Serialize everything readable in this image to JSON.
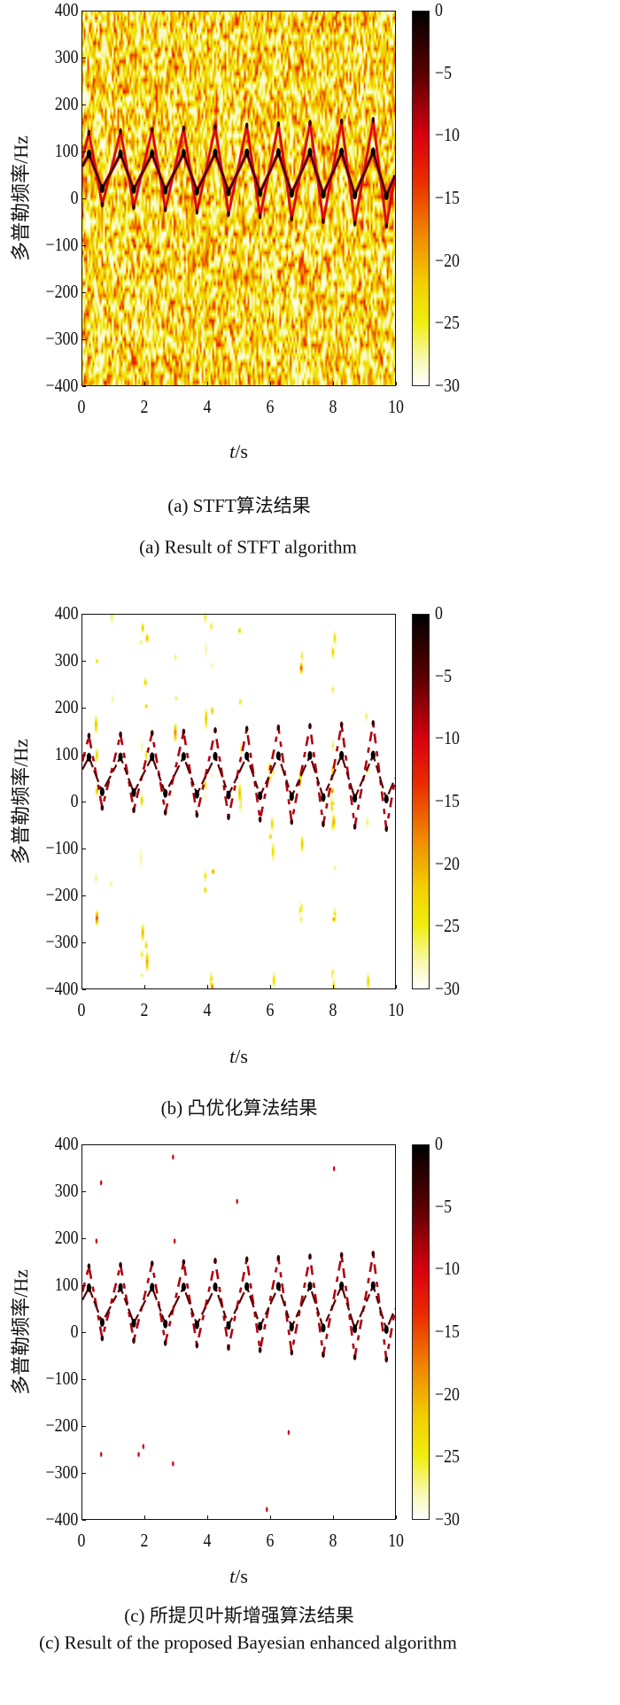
{
  "chart_data": [
    {
      "type": "heatmap",
      "panel": "a",
      "caption_cn": "(a) STFT算法结果",
      "caption_en": "(a) Result of STFT algorithm",
      "xlabel_var": "t",
      "xlabel_unit": "/s",
      "ylabel": "多普勒频率/Hz",
      "xlim": [
        0,
        10
      ],
      "ylim": [
        -400,
        400
      ],
      "x_ticks": [
        "0",
        "2",
        "4",
        "6",
        "8",
        "10"
      ],
      "x_tick_values": [
        0,
        2,
        4,
        6,
        8,
        10
      ],
      "y_ticks": [
        "400",
        "300",
        "200",
        "100",
        "0",
        "−100",
        "−200",
        "−300",
        "−400"
      ],
      "y_tick_values": [
        400,
        300,
        200,
        100,
        0,
        -100,
        -200,
        -300,
        -400
      ],
      "colorbar_ticks": [
        "0",
        "−5",
        "−10",
        "−15",
        "−20",
        "−25",
        "−30"
      ],
      "colorbar_tick_values": [
        0,
        -5,
        -10,
        -15,
        -20,
        -25,
        -30
      ],
      "clim": [
        -30,
        0
      ],
      "colormap": "hot (reversed): white→yellow→red→black",
      "background_noise": "dense",
      "noise_level_db": [
        -30,
        -12
      ],
      "components": [
        {
          "name": "inner",
          "peak_hz": [
            95,
            100
          ],
          "trough_hz": [
            22,
            5
          ],
          "level_db": -3
        },
        {
          "name": "outer",
          "peak_hz": [
            140,
            170
          ],
          "trough_hz": [
            -10,
            -60
          ],
          "level_db": -10
        }
      ],
      "period_s": 1.01,
      "first_peak_s": 0.21,
      "fall_fraction": 0.42
    },
    {
      "type": "heatmap",
      "panel": "b",
      "caption_cn": "(b) 凸优化算法结果",
      "xlabel_var": "t",
      "xlabel_unit": "/s",
      "ylabel": "多普勒频率/Hz",
      "xlim": [
        0,
        10
      ],
      "ylim": [
        -400,
        400
      ],
      "x_ticks": [
        "0",
        "2",
        "4",
        "6",
        "8",
        "10"
      ],
      "x_tick_values": [
        0,
        2,
        4,
        6,
        8,
        10
      ],
      "y_ticks": [
        "400",
        "300",
        "200",
        "100",
        "0",
        "−100",
        "−200",
        "−300",
        "−400"
      ],
      "y_tick_values": [
        400,
        300,
        200,
        100,
        0,
        -100,
        -200,
        -300,
        -400
      ],
      "colorbar_ticks": [
        "0",
        "−5",
        "−10",
        "−15",
        "−20",
        "−25",
        "−30"
      ],
      "colorbar_tick_values": [
        0,
        -5,
        -10,
        -15,
        -20,
        -25,
        -30
      ],
      "clim": [
        -30,
        0
      ],
      "colormap": "hot (reversed): white→yellow→red→black",
      "background_noise": "sparse vertical streaks near t = 1, 2, 3, 4, 5, 6, 8 s",
      "streak_times_s": [
        0.95,
        2.05,
        3.0,
        3.95,
        4.15,
        5.05,
        6.0,
        6.1,
        7.0,
        8.0,
        8.05,
        9.1,
        0.45,
        1.9
      ],
      "components": [
        {
          "name": "inner",
          "peak_hz": [
            95,
            100
          ],
          "trough_hz": [
            22,
            5
          ],
          "level_db": -2
        },
        {
          "name": "outer",
          "peak_hz": [
            140,
            170
          ],
          "trough_hz": [
            -10,
            -60
          ],
          "level_db": -6
        }
      ],
      "period_s": 1.01,
      "first_peak_s": 0.21,
      "fall_fraction": 0.42
    },
    {
      "type": "heatmap",
      "panel": "c",
      "caption_cn": "(c) 所提贝叶斯增强算法结果",
      "caption_en": "(c) Result of the proposed Bayesian enhanced algorithm",
      "xlabel_var": "t",
      "xlabel_unit": "/s",
      "ylabel": "多普勒频率/Hz",
      "xlim": [
        0,
        10
      ],
      "ylim": [
        -400,
        400
      ],
      "x_ticks": [
        "0",
        "2",
        "4",
        "6",
        "8",
        "10"
      ],
      "x_tick_values": [
        0,
        2,
        4,
        6,
        8,
        10
      ],
      "y_ticks": [
        "400",
        "300",
        "200",
        "100",
        "0",
        "−100",
        "−200",
        "−300",
        "−400"
      ],
      "y_tick_values": [
        400,
        300,
        200,
        100,
        0,
        -100,
        -200,
        -300,
        -400
      ],
      "colorbar_ticks": [
        "0",
        "−5",
        "−10",
        "−15",
        "−20",
        "−25",
        "−30"
      ],
      "colorbar_tick_values": [
        0,
        -5,
        -10,
        -15,
        -20,
        -25,
        -30
      ],
      "clim": [
        -30,
        0
      ],
      "colormap": "hot (reversed): white→yellow→red→black",
      "background_noise": "none",
      "outliers": [
        [
          0.6,
          320
        ],
        [
          2.9,
          375
        ],
        [
          4.95,
          280
        ],
        [
          0.45,
          195
        ],
        [
          2.95,
          195
        ],
        [
          8.05,
          350
        ],
        [
          0.6,
          -262
        ],
        [
          1.95,
          -245
        ],
        [
          2.9,
          -282
        ],
        [
          5.9,
          -380
        ],
        [
          6.6,
          -215
        ],
        [
          1.8,
          -262
        ]
      ],
      "components": [
        {
          "name": "inner",
          "peak_hz": [
            95,
            100
          ],
          "trough_hz": [
            22,
            5
          ],
          "level_db": -2
        },
        {
          "name": "outer",
          "peak_hz": [
            140,
            170
          ],
          "trough_hz": [
            -10,
            -60
          ],
          "level_db": -7
        }
      ],
      "period_s": 1.01,
      "first_peak_s": 0.21,
      "fall_fraction": 0.42
    }
  ]
}
